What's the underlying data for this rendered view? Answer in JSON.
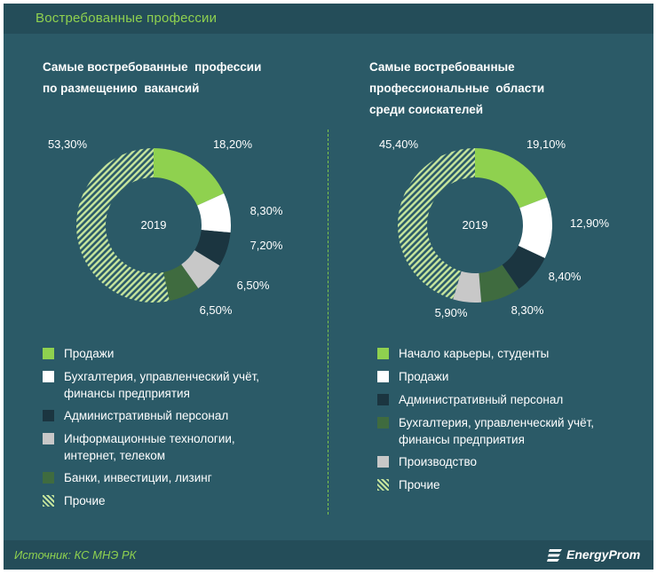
{
  "title": "Востребованные профессии",
  "colors": {
    "background": "#2b5a67",
    "bar": "#244d59",
    "accent": "#8fd14f",
    "hatch": "#c6e59d"
  },
  "left": {
    "title_line1": "Самые востребованные  профессии",
    "title_line2": "по размещению  вакансий",
    "center_label": "2019",
    "legend": [
      {
        "label1": "Продажи",
        "label2": "",
        "color": "#8fd14f",
        "pattern": "solid"
      },
      {
        "label1": "Бухгалтерия, управленческий учёт,",
        "label2": "финансы предприятия",
        "color": "#ffffff",
        "pattern": "solid"
      },
      {
        "label1": "Административный персонал",
        "label2": "",
        "color": "#1b3540",
        "pattern": "solid"
      },
      {
        "label1": "Информационные технологии,",
        "label2": "интернет, телеком",
        "color": "#c8c8c8",
        "pattern": "solid"
      },
      {
        "label1": "Банки, инвестиции, лизинг",
        "label2": "",
        "color": "#3f6b3f",
        "pattern": "solid"
      },
      {
        "label1": "Прочие",
        "label2": "",
        "color": "#c6e59d",
        "pattern": "hatch"
      }
    ]
  },
  "right": {
    "title_line1": "Самые востребованные",
    "title_line2": "профессиональные  области",
    "title_line3": "среди соискателей",
    "center_label": "2019",
    "legend": [
      {
        "label1": "Начало карьеры, студенты",
        "label2": "",
        "color": "#8fd14f",
        "pattern": "solid"
      },
      {
        "label1": "Продажи",
        "label2": "",
        "color": "#ffffff",
        "pattern": "solid"
      },
      {
        "label1": "Административный персонал",
        "label2": "",
        "color": "#1b3540",
        "pattern": "solid"
      },
      {
        "label1": "Бухгалтерия, управленческий учёт,",
        "label2": "финансы предприятия",
        "color": "#3f6b3f",
        "pattern": "solid"
      },
      {
        "label1": "Производство",
        "label2": "",
        "color": "#c8c8c8",
        "pattern": "solid"
      },
      {
        "label1": "Прочие",
        "label2": "",
        "color": "#c6e59d",
        "pattern": "hatch"
      }
    ]
  },
  "chart_data": [
    {
      "type": "pie",
      "title": "Самые востребованные  профессии по размещению  вакансий",
      "center_label": "2019",
      "categories": [
        "Продажи",
        "Бухгалтерия, управленческий учёт, финансы предприятия",
        "Административный персонал",
        "Информационные технологии, интернет, телеком",
        "Банки, инвестиции, лизинг",
        "Прочие"
      ],
      "values": [
        18.2,
        8.3,
        7.2,
        6.5,
        6.5,
        53.3
      ],
      "value_labels": [
        "18,20%",
        "8,30%",
        "7,20%",
        "6,50%",
        "6,50%",
        "53,30%"
      ],
      "colors": [
        "#8fd14f",
        "#ffffff",
        "#1b3540",
        "#c8c8c8",
        "#3f6b3f",
        "#c6e59d"
      ],
      "legend_position": "bottom"
    },
    {
      "type": "pie",
      "title": "Самые востребованные профессиональные  области среди соискателей",
      "center_label": "2019",
      "categories": [
        "Начало карьеры, студенты",
        "Продажи",
        "Административный персонал",
        "Бухгалтерия, управленческий учёт, финансы предприятия",
        "Производство",
        "Прочие"
      ],
      "values": [
        19.1,
        12.9,
        8.4,
        8.3,
        5.9,
        45.4
      ],
      "value_labels": [
        "19,10%",
        "12,90%",
        "8,40%",
        "8,30%",
        "5,90%",
        "45,40%"
      ],
      "colors": [
        "#8fd14f",
        "#ffffff",
        "#1b3540",
        "#3f6b3f",
        "#c8c8c8",
        "#c6e59d"
      ],
      "legend_position": "bottom"
    }
  ],
  "footer": {
    "source": "Источник: КС МНЭ РК",
    "brand": "EnergyProm"
  }
}
